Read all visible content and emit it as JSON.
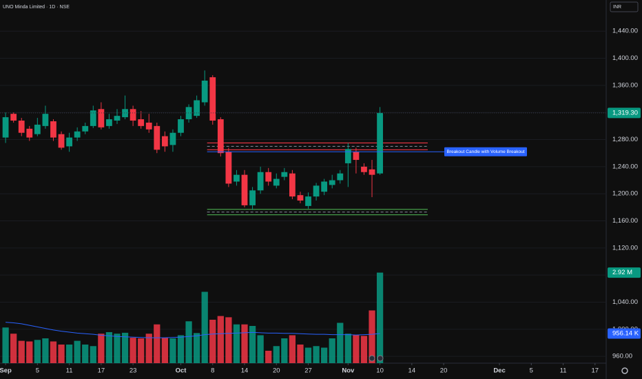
{
  "header": {
    "title": "UNO Minda Limited · 1D · NSE",
    "currency": "INR"
  },
  "chart_data": {
    "type": "candlestick",
    "xlim": [
      -0.7,
      75.4
    ],
    "ylim": [
      950,
      1486
    ],
    "volume_lim": [
      0,
      3.0
    ],
    "up_color": "#089981",
    "down_color": "#f23645",
    "open": [
      1283,
      1318,
      1308,
      1296,
      1288,
      1300,
      1307,
      1288,
      1270,
      1283,
      1292,
      1300,
      1325,
      1300,
      1308,
      1313,
      1325,
      1310,
      1305,
      1300,
      1285,
      1272,
      1290,
      1310,
      1315,
      1335,
      1372,
      1310,
      1262,
      1218,
      1228,
      1183,
      1205,
      1232,
      1212,
      1225,
      1230,
      1198,
      1182,
      1196,
      1203,
      1213,
      1220,
      1245,
      1262,
      1240,
      1236,
      1230
    ],
    "high": [
      1320,
      1320,
      1312,
      1300,
      1312,
      1330,
      1310,
      1292,
      1290,
      1298,
      1305,
      1330,
      1335,
      1318,
      1325,
      1345,
      1330,
      1322,
      1318,
      1305,
      1292,
      1295,
      1315,
      1332,
      1345,
      1382,
      1375,
      1313,
      1268,
      1235,
      1235,
      1210,
      1240,
      1238,
      1230,
      1238,
      1235,
      1203,
      1202,
      1216,
      1222,
      1228,
      1235,
      1275,
      1268,
      1245,
      1250,
      1328
    ],
    "low": [
      1275,
      1305,
      1285,
      1278,
      1285,
      1296,
      1278,
      1265,
      1262,
      1278,
      1288,
      1297,
      1295,
      1296,
      1303,
      1310,
      1300,
      1296,
      1290,
      1260,
      1262,
      1262,
      1285,
      1305,
      1312,
      1330,
      1302,
      1255,
      1210,
      1212,
      1180,
      1176,
      1200,
      1212,
      1208,
      1220,
      1192,
      1186,
      1178,
      1190,
      1198,
      1208,
      1215,
      1210,
      1230,
      1228,
      1195,
      1228
    ],
    "close": [
      1313,
      1308,
      1290,
      1283,
      1302,
      1318,
      1283,
      1268,
      1283,
      1292,
      1300,
      1323,
      1298,
      1310,
      1315,
      1325,
      1308,
      1300,
      1295,
      1265,
      1270,
      1290,
      1310,
      1328,
      1338,
      1367,
      1308,
      1260,
      1215,
      1228,
      1183,
      1205,
      1232,
      1218,
      1222,
      1232,
      1196,
      1190,
      1196,
      1212,
      1218,
      1220,
      1230,
      1266,
      1250,
      1232,
      1228,
      1319.3
    ],
    "volume": [
      1.15,
      0.95,
      0.72,
      0.7,
      0.75,
      0.8,
      0.7,
      0.6,
      0.6,
      0.72,
      0.6,
      0.55,
      0.95,
      1.0,
      0.95,
      0.98,
      0.82,
      0.8,
      0.95,
      1.25,
      0.82,
      0.8,
      0.9,
      1.35,
      0.97,
      2.3,
      1.4,
      1.52,
      1.48,
      1.25,
      1.25,
      1.2,
      0.9,
      0.4,
      0.55,
      0.8,
      0.9,
      0.6,
      0.5,
      0.55,
      0.5,
      0.8,
      1.3,
      0.95,
      0.9,
      0.88,
      1.7,
      2.92
    ],
    "volume_ma": [
      1.32,
      1.3,
      1.27,
      1.22,
      1.17,
      1.12,
      1.07,
      1.03,
      1.0,
      0.97,
      0.95,
      0.93,
      0.9,
      0.88,
      0.86,
      0.85,
      0.84,
      0.83,
      0.82,
      0.82,
      0.82,
      0.83,
      0.84,
      0.86,
      0.88,
      0.92,
      0.94,
      0.95,
      0.96,
      0.97,
      0.98,
      0.99,
      0.98,
      0.97,
      0.97,
      0.96,
      0.96,
      0.95,
      0.94,
      0.93,
      0.93,
      0.92,
      0.92,
      0.92,
      0.91,
      0.92,
      0.93,
      0.95614
    ],
    "volume_ma_color": "#2962ff",
    "yticks": [
      {
        "value": 960,
        "label": "960.00"
      },
      {
        "value": 1000,
        "label": "1,000.00"
      },
      {
        "value": 1040,
        "label": "1,040.00"
      },
      {
        "value": 1080,
        "label": "1,080.00"
      },
      {
        "value": 1120,
        "label": "1,120.00"
      },
      {
        "value": 1160,
        "label": "1,160.00"
      },
      {
        "value": 1200,
        "label": "1,200.00"
      },
      {
        "value": 1240,
        "label": "1,240.00"
      },
      {
        "value": 1280,
        "label": "1,280.00"
      },
      {
        "value": 1320,
        "label": "1,320.00"
      },
      {
        "value": 1360,
        "label": "1,360.00"
      },
      {
        "value": 1400,
        "label": "1,400.00"
      },
      {
        "value": 1440,
        "label": "1,440.00"
      }
    ],
    "xticks": [
      {
        "value": 0,
        "label": "Sep"
      },
      {
        "value": 4,
        "label": "5"
      },
      {
        "value": 8,
        "label": "11"
      },
      {
        "value": 12,
        "label": "17"
      },
      {
        "value": 16,
        "label": "23"
      },
      {
        "value": 22,
        "label": "Oct"
      },
      {
        "value": 26,
        "label": "8"
      },
      {
        "value": 30,
        "label": "14"
      },
      {
        "value": 34,
        "label": "20"
      },
      {
        "value": 38,
        "label": "27"
      },
      {
        "value": 43,
        "label": "Nov"
      },
      {
        "value": 47,
        "label": "10"
      },
      {
        "value": 51,
        "label": "14"
      },
      {
        "value": 55,
        "label": "20"
      },
      {
        "value": 62,
        "label": "Dec"
      },
      {
        "value": 66,
        "label": "5"
      },
      {
        "value": 70,
        "label": "11"
      },
      {
        "value": 74,
        "label": "17"
      }
    ],
    "last_price": {
      "value": 1319.3,
      "label": "1,319.30"
    },
    "last_volume": {
      "value": 2.92,
      "label": "2.92 M"
    },
    "volume_ma_last": {
      "value": 0.95614,
      "label": "956.14 K"
    },
    "resistance_zone": {
      "top": 1275,
      "bottom": 1265,
      "color": "#f23645"
    },
    "support_zone": {
      "top": 1177,
      "bottom": 1169,
      "color": "#4caf50"
    },
    "annotation": {
      "value": 1262,
      "text": "Breakout Candle with Volume Breakout",
      "color": "#2962ff"
    }
  }
}
